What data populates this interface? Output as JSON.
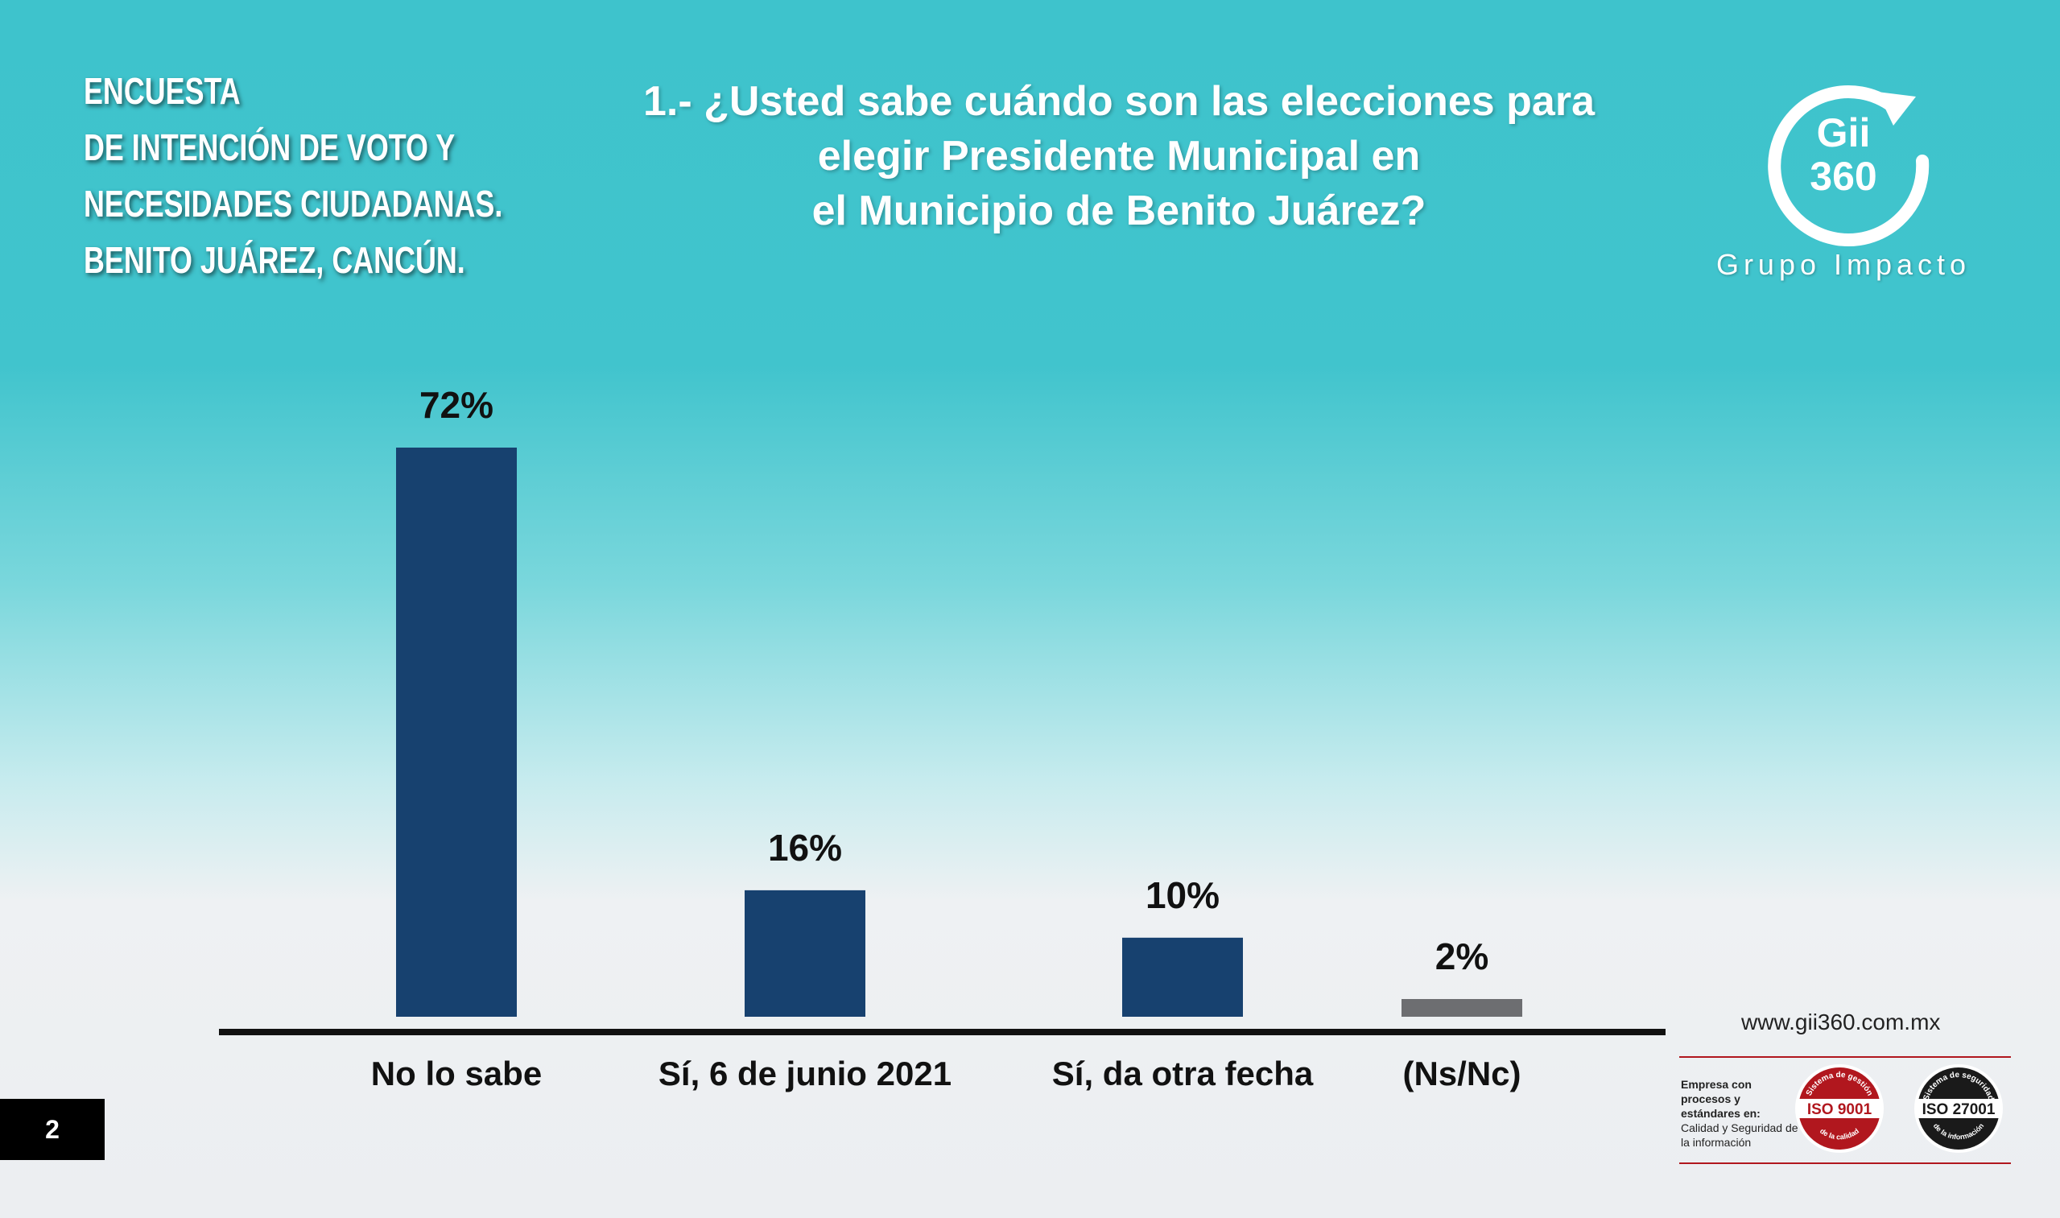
{
  "survey_title_lines": [
    "ENCUESTA",
    "DE INTENCIÓN DE VOTO Y",
    "NECESIDADES CIUDADANAS.",
    "BENITO JUÁREZ, CANCÚN."
  ],
  "question_lines": [
    "1.- ¿Usted sabe cuándo son las elecciones para",
    "elegir Presidente Municipal en",
    "el Municipio de Benito Juárez?"
  ],
  "logo": {
    "mark_line1": "Gii",
    "mark_line2": "360",
    "name": "Grupo Impacto"
  },
  "footer": {
    "website": "www.gii360.com.mx",
    "cert_strong": "Empresa con procesos y estándares en:",
    "cert_rest": "Calidad y Seguridad de la información",
    "badges": [
      {
        "label": "ISO 9001",
        "top_arc": "Sistema de gestión",
        "bottom_arc": "de la calidad",
        "color": "#b1171e"
      },
      {
        "label": "ISO 27001",
        "top_arc": "Sistema de seguridad",
        "bottom_arc": "de la información",
        "color": "#1a1a1a"
      }
    ]
  },
  "page_number": "2",
  "chart_data": {
    "type": "bar",
    "categories": [
      "No lo sabe",
      "Sí, 6 de junio 2021",
      "Sí, da otra fecha",
      "(Ns/Nc)"
    ],
    "values": [
      72,
      16,
      10,
      2
    ],
    "value_labels": [
      "72%",
      "16%",
      "10%",
      "2%"
    ],
    "colors": [
      "#17416f",
      "#17416f",
      "#17416f",
      "#6d6e71"
    ],
    "title": "",
    "xlabel": "",
    "ylabel": "",
    "ylim": [
      0,
      100
    ],
    "grid": false,
    "legend": "none"
  }
}
